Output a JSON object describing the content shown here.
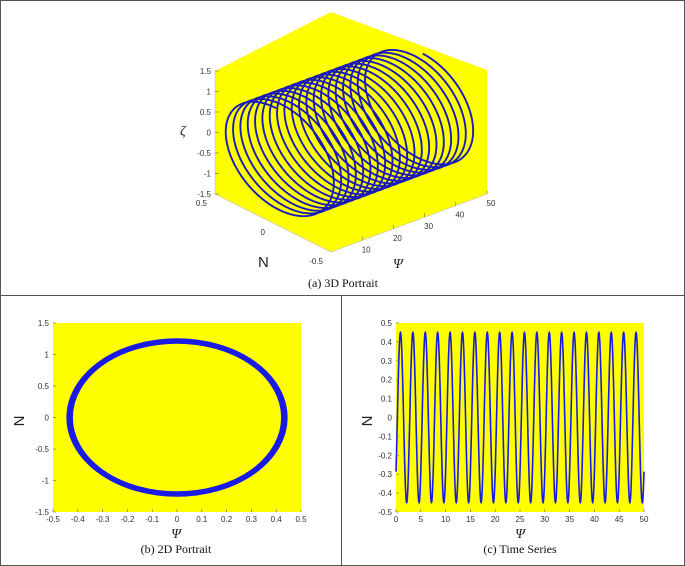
{
  "chart_data": [
    {
      "id": "a",
      "type": "line3d",
      "caption": "(a)  3D Portrait",
      "xlabel": "Ψ",
      "ylabel": "N",
      "zlabel": "ζ",
      "xlim": [
        0,
        50
      ],
      "ylim": [
        -0.5,
        0.5
      ],
      "zlim": [
        -1.5,
        1.5
      ],
      "xticks": [
        "10",
        "20",
        "30",
        "40",
        "50"
      ],
      "yticks": [
        "-0.5",
        "0",
        "0.5"
      ],
      "zticks": [
        "1.5",
        "1",
        "0.5",
        "0",
        "-0.5",
        "-1",
        "-1.5"
      ],
      "background": "#ffff00",
      "line_color": "#1a1ab8",
      "turns": 20,
      "amplitude_N": 0.45,
      "amplitude_zeta": 1.25
    },
    {
      "id": "b",
      "type": "line",
      "caption": "(b)  2D Portrait",
      "xlabel": "Ψ",
      "ylabel": "N",
      "xlim": [
        -0.5,
        0.5
      ],
      "ylim": [
        -1.5,
        1.5
      ],
      "xticks": [
        "-0.5",
        "-0.4",
        "-0.3",
        "-0.2",
        "-0.1",
        "0",
        "0.1",
        "0.2",
        "0.3",
        "0.4",
        "0.5"
      ],
      "yticks": [
        "1.5",
        "1",
        "0.5",
        "0",
        "-0.5",
        "-1",
        "-1.5"
      ],
      "background": "#ffff00",
      "line_color": "#1a1ae6",
      "ellipse": {
        "rx": 0.45,
        "ry": 1.25
      }
    },
    {
      "id": "c",
      "type": "line",
      "caption": "(c)  Time Series",
      "xlabel": "Ψ",
      "ylabel": "N",
      "xlim": [
        0,
        50
      ],
      "ylim": [
        -0.5,
        0.5
      ],
      "xticks": [
        "0",
        "5",
        "10",
        "15",
        "20",
        "25",
        "30",
        "35",
        "40",
        "45",
        "50"
      ],
      "yticks": [
        "0.5",
        "0.4",
        "0.3",
        "0.2",
        "0.1",
        "0",
        "-0.1",
        "-0.2",
        "-0.3",
        "-0.4",
        "-0.5"
      ],
      "background": "#ffff00",
      "line_color": "#1a1ae6",
      "oscillation": {
        "amplitude": 0.45,
        "period": 2.5
      }
    }
  ]
}
